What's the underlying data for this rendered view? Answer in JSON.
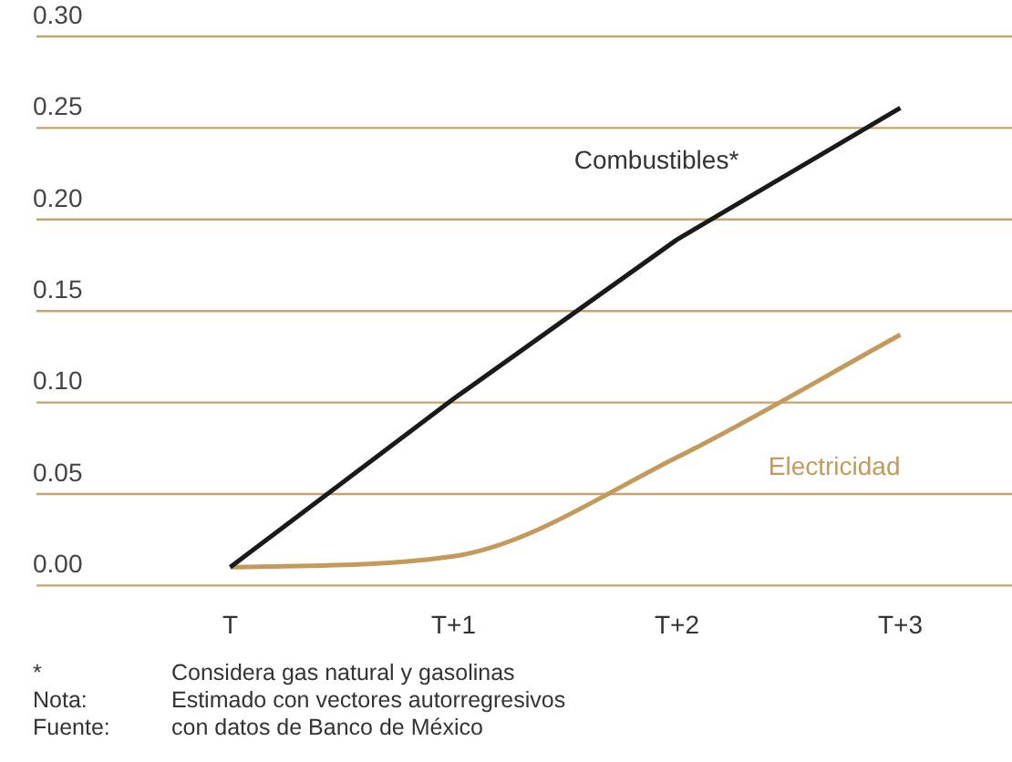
{
  "chart_data": {
    "type": "line",
    "categories": [
      "T",
      "T+1",
      "T+2",
      "T+3"
    ],
    "series": [
      {
        "name": "Combustibles*",
        "color": "#1a1a1a",
        "values": [
          0.01,
          0.102,
          0.189,
          0.261
        ]
      },
      {
        "name": "Electricidad",
        "color": "#c49a5c",
        "values": [
          0.01,
          0.016,
          0.07,
          0.137
        ]
      }
    ],
    "ylim": [
      0,
      0.3
    ],
    "yticks": [
      {
        "value": 0,
        "label": "0.00"
      },
      {
        "value": 0.05,
        "label": "0.05"
      },
      {
        "value": 0.1,
        "label": "0.10"
      },
      {
        "value": 0.15,
        "label": "0.15"
      },
      {
        "value": 0.2,
        "label": "0.20"
      },
      {
        "value": 0.25,
        "label": "0.25"
      },
      {
        "value": 0.3,
        "label": "0.30"
      }
    ],
    "grid": "y",
    "legend": false,
    "marker": "none",
    "line_style": "solid",
    "annotations": [
      "* Considera gas natural y gasolinas",
      "Nota: Estimado con vectores autorregresivos",
      "Fuente: con datos de Banco de México"
    ]
  }
}
